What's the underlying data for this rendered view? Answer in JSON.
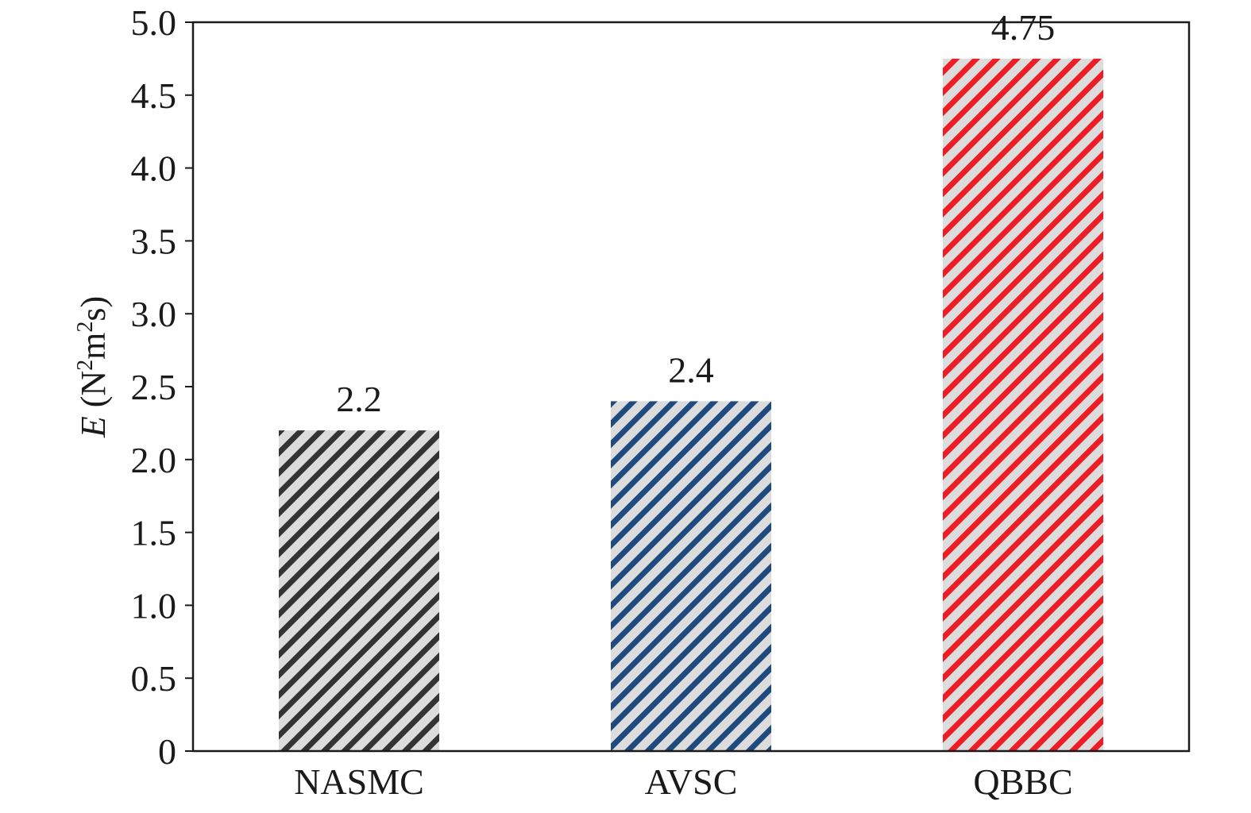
{
  "chart_data": {
    "type": "bar",
    "categories": [
      "NASMC",
      "AVSC",
      "QBBC"
    ],
    "values": [
      2.2,
      2.4,
      4.75
    ],
    "value_labels": [
      "2.2",
      "2.4",
      "4.75"
    ],
    "ylim": [
      0,
      5.0
    ],
    "yticks": [
      0,
      0.5,
      1.0,
      1.5,
      2.0,
      2.5,
      3.0,
      3.5,
      4.0,
      4.5,
      5.0
    ],
    "ytick_labels": [
      "0",
      "0.5",
      "1.0",
      "1.5",
      "2.0",
      "2.5",
      "3.0",
      "3.5",
      "4.0",
      "4.5",
      "5.0"
    ],
    "ylabel": {
      "symbol": "E",
      "unit_open": " (N",
      "sup1": "2",
      "mid": "m",
      "sup2": "2",
      "unit_close": "s)"
    },
    "xlabel": "",
    "title": "",
    "grid": false,
    "legend": "none",
    "bar_background": "#dcdcdc",
    "bar_stripe_colors": [
      "#333333",
      "#1f4a80",
      "#ee1c24"
    ],
    "pattern": "diagonal-stripes"
  }
}
